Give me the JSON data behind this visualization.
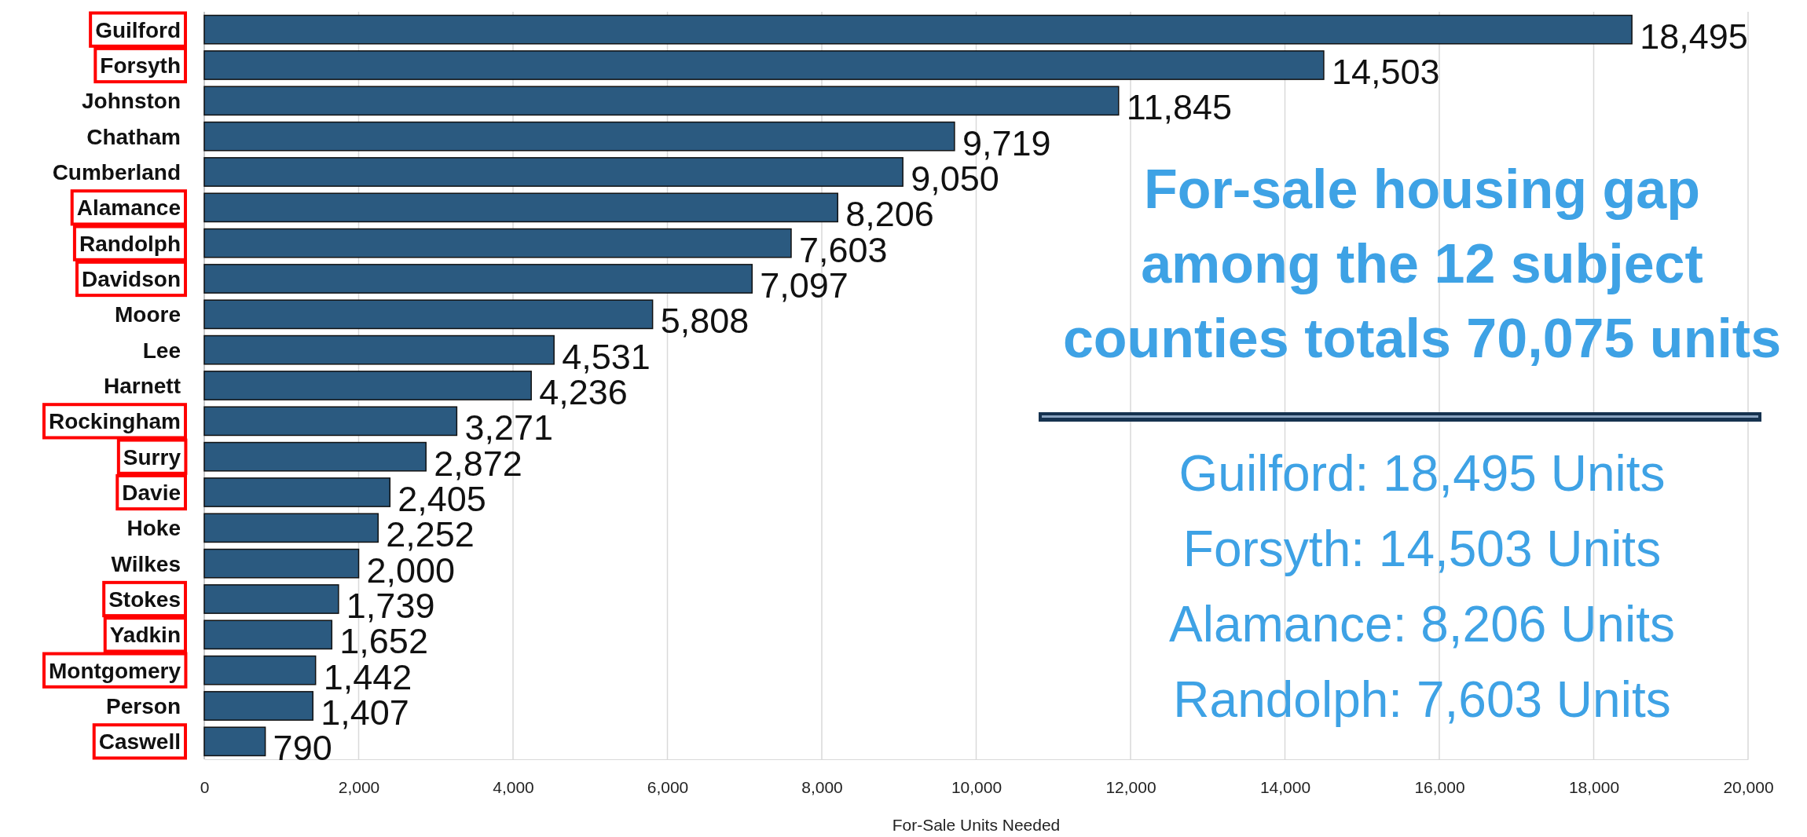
{
  "chart_data": {
    "type": "bar",
    "orientation": "horizontal",
    "title": "For-sale housing gap among the 12 subject counties totals 70,075 units",
    "xlabel": "For-Sale Units Needed",
    "categories": [
      "Guilford",
      "Forsyth",
      "Johnston",
      "Chatham",
      "Cumberland",
      "Alamance",
      "Randolph",
      "Davidson",
      "Moore",
      "Lee",
      "Harnett",
      "Rockingham",
      "Surry",
      "Davie",
      "Hoke",
      "Wilkes",
      "Stokes",
      "Yadkin",
      "Montgomery",
      "Person",
      "Caswell"
    ],
    "values": [
      18495,
      14503,
      11845,
      9719,
      9050,
      8206,
      7603,
      7097,
      5808,
      4531,
      4236,
      3271,
      2872,
      2405,
      2252,
      2000,
      1739,
      1652,
      1442,
      1407,
      790
    ],
    "color": "#2b5a80",
    "xlim": [
      0,
      20000
    ],
    "xticks": [
      {
        "value": 0,
        "label": "0"
      },
      {
        "value": 2000,
        "label": "2,000"
      },
      {
        "value": 4000,
        "label": "4,000"
      },
      {
        "value": 6000,
        "label": "6,000"
      },
      {
        "value": 8000,
        "label": "8,000"
      },
      {
        "value": 10000,
        "label": "10,000"
      },
      {
        "value": 12000,
        "label": "12,000"
      },
      {
        "value": 14000,
        "label": "14,000"
      },
      {
        "value": 16000,
        "label": "16,000"
      },
      {
        "value": 18000,
        "label": "18,000"
      },
      {
        "value": 20000,
        "label": "20,000"
      }
    ],
    "grid": "x",
    "value_labels": [
      "18,495",
      "14,503",
      "11,845",
      "9,719",
      "9,050",
      "8,206",
      "7,603",
      "7,097",
      "5,808",
      "4,531",
      "4,236",
      "3,271",
      "2,872",
      "2,405",
      "2,252",
      "2,000",
      "1,739",
      "1,652",
      "1,442",
      "1,407",
      "790"
    ],
    "annotations": [
      "Guilford: 18,495 Units",
      "Forsyth: 14,503 Units",
      "Alamance: 8,206 Units",
      "Randolph: 7,603 Units"
    ]
  }
}
